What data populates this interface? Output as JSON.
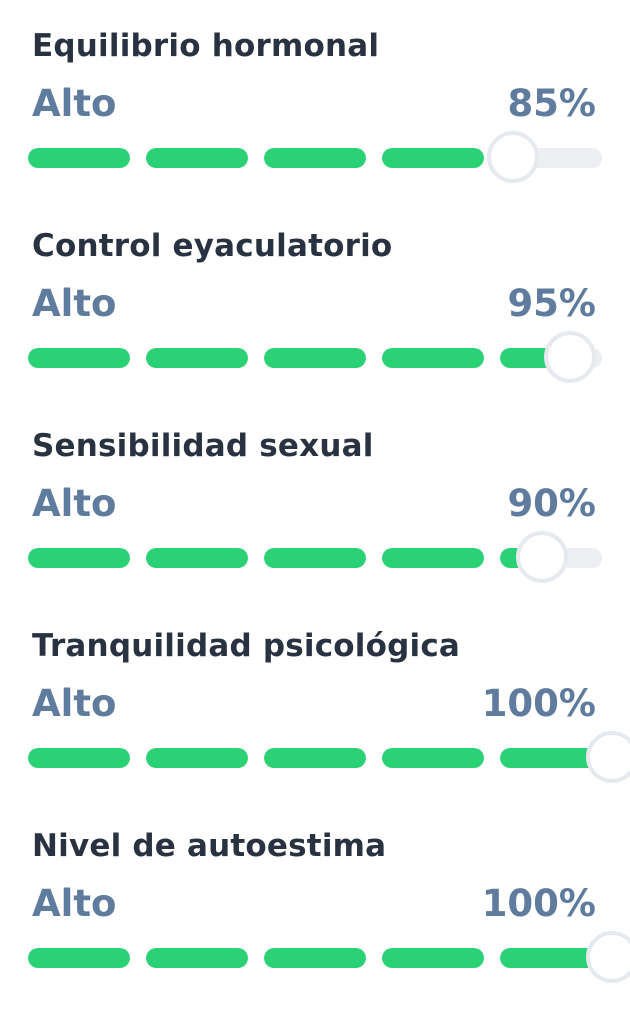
{
  "colors": {
    "title": "#283241",
    "value": "#5f7b9d",
    "fill": "#2ad175",
    "track": "#eceef2",
    "knob_border": "#e6e9ee"
  },
  "metrics": [
    {
      "title": "Equilibrio hormonal",
      "level": "Alto",
      "percent_label": "85%",
      "progress": 0.85
    },
    {
      "title": "Control eyaculatorio",
      "level": "Alto",
      "percent_label": "95%",
      "progress": 0.95
    },
    {
      "title": "Sensibilidad sexual",
      "level": "Alto",
      "percent_label": "90%",
      "progress": 0.9
    },
    {
      "title": "Tranquilidad psicológica",
      "level": "Alto",
      "percent_label": "100%",
      "progress": 1.0
    },
    {
      "title": "Nivel de autoestima",
      "level": "Alto",
      "percent_label": "100%",
      "progress": 1.0
    }
  ]
}
